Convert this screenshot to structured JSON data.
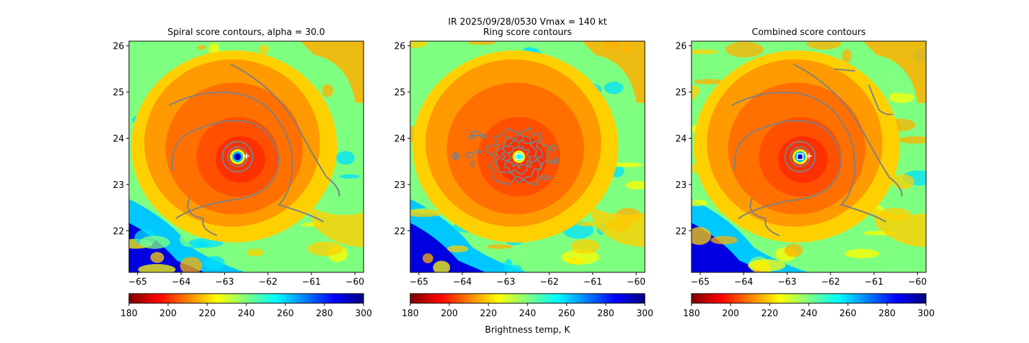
{
  "suptitle": "IR  2025/09/28/0530    Vmax = 140 kt",
  "colorbar_label": "Brightness temp, K",
  "colormap": [
    "#800000",
    "#ff0000",
    "#ff8000",
    "#ffff00",
    "#80ff80",
    "#00ffff",
    "#0080ff",
    "#0000ff",
    "#000080"
  ],
  "contour_color": "#808080",
  "chart_data": [
    {
      "type": "heatmap",
      "title": "Spiral score contours, alpha = 30.0",
      "xlim": [
        -65.2,
        -59.8
      ],
      "ylim": [
        21.1,
        26.1
      ],
      "xticks": [
        -65,
        -64,
        -63,
        -62,
        -61,
        -60
      ],
      "yticks": [
        22,
        23,
        24,
        25,
        26
      ],
      "center": [
        -62.7,
        23.6
      ],
      "marker": "plus",
      "colorbar": {
        "range": [
          180,
          300
        ],
        "ticks": [
          180,
          200,
          220,
          240,
          260,
          280,
          300
        ]
      }
    },
    {
      "type": "heatmap",
      "title": "Ring score contours",
      "xlim": [
        -65.2,
        -59.8
      ],
      "ylim": [
        21.1,
        26.1
      ],
      "xticks": [
        -65,
        -64,
        -63,
        -62,
        -61,
        -60
      ],
      "yticks": [
        22,
        23,
        24,
        25,
        26
      ],
      "center": [
        -62.7,
        23.6
      ],
      "marker": "square",
      "colorbar": {
        "range": [
          180,
          300
        ],
        "ticks": [
          180,
          200,
          220,
          240,
          260,
          280,
          300
        ]
      }
    },
    {
      "type": "heatmap",
      "title": "Combined score contours",
      "xlim": [
        -65.2,
        -59.8
      ],
      "ylim": [
        21.1,
        26.1
      ],
      "xticks": [
        -65,
        -64,
        -63,
        -62,
        -61,
        -60
      ],
      "yticks": [
        22,
        23,
        24,
        25,
        26
      ],
      "center": [
        -62.7,
        23.6
      ],
      "marker": "both",
      "colorbar": {
        "range": [
          180,
          300
        ],
        "ticks": [
          180,
          200,
          220,
          240,
          260,
          280,
          300
        ]
      }
    }
  ]
}
